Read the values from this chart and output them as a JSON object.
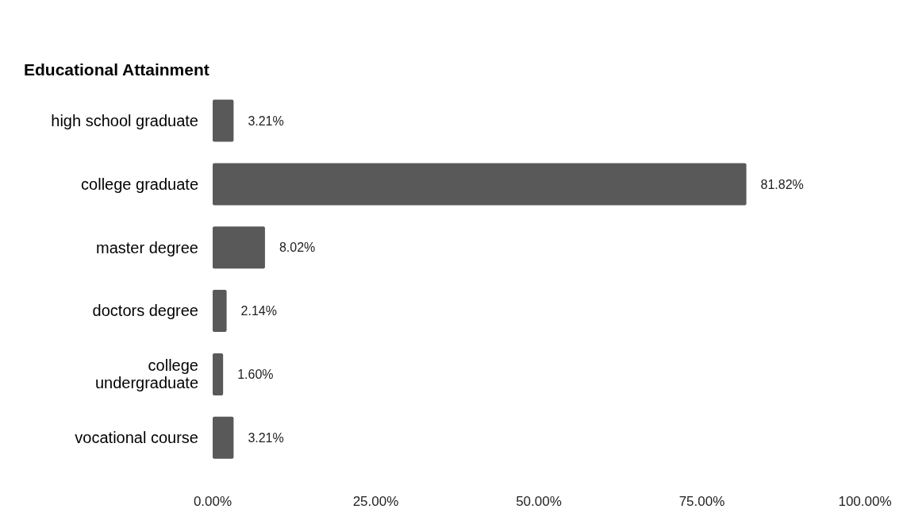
{
  "chart_data": {
    "type": "bar",
    "orientation": "horizontal",
    "title": "Educational Attainment",
    "categories": [
      "high school graduate",
      "college graduate",
      "master degree",
      "doctors degree",
      "college undergraduate",
      "vocational course"
    ],
    "values": [
      3.21,
      81.82,
      8.02,
      2.14,
      1.6,
      3.21
    ],
    "value_labels": [
      "3.21%",
      "81.82%",
      "8.02%",
      "2.14%",
      "1.60%",
      "3.21%"
    ],
    "color": "#595959",
    "xlim": [
      0,
      100
    ],
    "xticks": [
      {
        "value": 0,
        "label": "0.00%"
      },
      {
        "value": 25,
        "label": "25.00%"
      },
      {
        "value": 50,
        "label": "50.00%"
      },
      {
        "value": 75,
        "label": "75.00%"
      },
      {
        "value": 100,
        "label": "100.00%"
      }
    ],
    "grid": false,
    "legend": false
  }
}
